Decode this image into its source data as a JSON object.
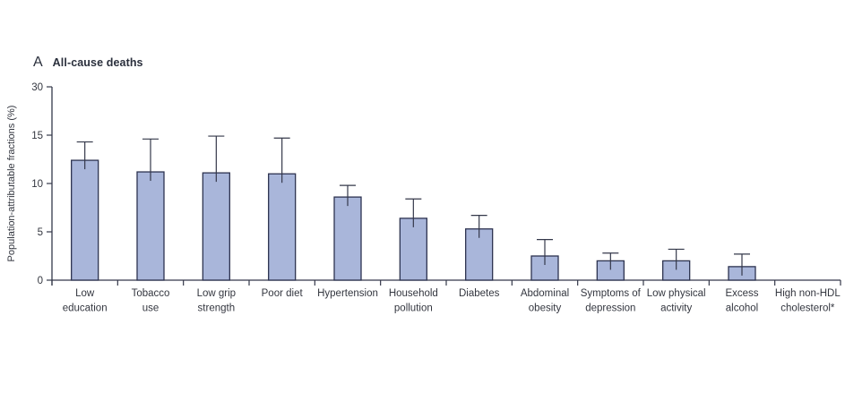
{
  "figure": {
    "panel_label": "A",
    "title": "All-cause deaths",
    "ylabel": "Population-attributable fractions (%)"
  },
  "chart_data": {
    "type": "bar",
    "title": "A  All-cause deaths",
    "xlabel": "",
    "ylabel": "Population-attributable fractions (%)",
    "categories": [
      "Low education",
      "Tobacco use",
      "Low grip strength",
      "Poor diet",
      "Hypertension",
      "Household pollution",
      "Diabetes",
      "Abdominal obesity",
      "Symptoms of depression",
      "Low physical activity",
      "Excess alcohol",
      "High non-HDL cholesterol*"
    ],
    "category_lines": [
      [
        "Low",
        "education"
      ],
      [
        "Tobacco",
        "use"
      ],
      [
        "Low grip",
        "strength"
      ],
      [
        "Poor diet"
      ],
      [
        "Hypertension"
      ],
      [
        "Household",
        "pollution"
      ],
      [
        "Diabetes"
      ],
      [
        "Abdominal",
        "obesity"
      ],
      [
        "Symptoms of",
        "depression"
      ],
      [
        "Low physical",
        "activity"
      ],
      [
        "Excess",
        "alcohol"
      ],
      [
        "High non-HDL",
        "cholesterol*"
      ]
    ],
    "values": [
      12.4,
      11.2,
      11.1,
      11.0,
      8.6,
      6.4,
      5.3,
      2.5,
      2.0,
      2.0,
      1.4,
      0
    ],
    "upper_ci": [
      14.3,
      14.6,
      14.9,
      14.7,
      9.8,
      8.4,
      6.7,
      4.2,
      2.8,
      3.2,
      2.7,
      0
    ],
    "error_bars": "upper 95% CI whisker",
    "yticks": [
      0,
      5,
      10,
      15,
      30
    ],
    "ylim": [
      0,
      30
    ],
    "axis_break_above": 15,
    "grid": false,
    "legend": null,
    "colors": {
      "bar_fill": "#a9b6da",
      "bar_stroke": "#2d3350",
      "axis": "#34384a",
      "text": "#33363f",
      "background": "#ffffff"
    }
  }
}
